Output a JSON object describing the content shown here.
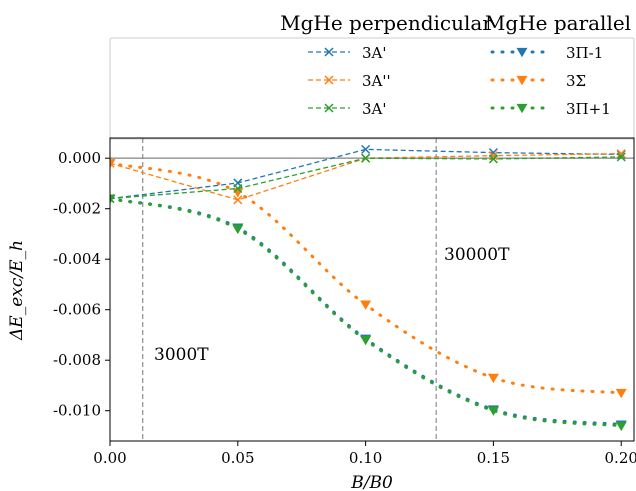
{
  "chart_data": {
    "type": "line",
    "xlabel": "B/B0",
    "ylabel": "ΔE_exc/E_h",
    "xlim": [
      0.0,
      0.205
    ],
    "ylim": [
      -0.0112,
      0.0008
    ],
    "x_ticks": [
      0.0,
      0.05,
      0.1,
      0.15,
      0.2
    ],
    "x_tick_labels": [
      "0.00",
      "0.05",
      "0.10",
      "0.15",
      "0.20"
    ],
    "y_ticks": [
      0.0,
      -0.002,
      -0.004,
      -0.006,
      -0.008,
      -0.01
    ],
    "y_tick_labels": [
      "0.000",
      "-0.002",
      "-0.004",
      "-0.006",
      "-0.008",
      "-0.010"
    ],
    "grid": false,
    "legend": {
      "placement": "top",
      "group_titles": [
        "MgHe perpendicular",
        "MgHe parallel"
      ],
      "perpendicular_labels": [
        "3A'",
        "3A''",
        "3A'"
      ],
      "parallel_labels": [
        "3Π-1",
        "3Σ",
        "3Π+1"
      ]
    },
    "annotations": [
      "3000T",
      "30000T"
    ],
    "vlines": [
      0.0128,
      0.1276
    ],
    "series": [
      {
        "group": "perpendicular",
        "name": "3A'",
        "style": "dashed",
        "marker": "x",
        "color": "#1f77b4",
        "x": [
          0.0,
          0.05,
          0.1,
          0.15,
          0.2
        ],
        "y": [
          -0.0016,
          -0.00098,
          0.00035,
          0.00022,
          0.00015
        ]
      },
      {
        "group": "perpendicular",
        "name": "3A''",
        "style": "dashed",
        "marker": "x",
        "color": "#ff7f0e",
        "x": [
          0.0,
          0.05,
          0.1,
          0.15,
          0.2
        ],
        "y": [
          -0.0002,
          -0.00165,
          0.0,
          0.0001,
          0.00018
        ]
      },
      {
        "group": "perpendicular",
        "name": "3A'",
        "style": "dashed",
        "marker": "x",
        "color": "#2ca02c",
        "x": [
          0.0,
          0.05,
          0.1,
          0.15,
          0.2
        ],
        "y": [
          -0.0016,
          -0.0012,
          0.0,
          -3e-05,
          5e-05
        ]
      },
      {
        "group": "parallel",
        "name": "3Π-1",
        "style": "dotted",
        "marker": "triangle-down",
        "color": "#1f77b4",
        "x": [
          0.0,
          0.05,
          0.1,
          0.15,
          0.2
        ],
        "y": [
          -0.0016,
          -0.00275,
          -0.00715,
          -0.00995,
          -0.01055
        ]
      },
      {
        "group": "parallel",
        "name": "3Σ",
        "style": "dotted",
        "marker": "triangle-down",
        "color": "#ff7f0e",
        "x": [
          0.0,
          0.05,
          0.1,
          0.15,
          0.2
        ],
        "y": [
          -0.0002,
          -0.00135,
          -0.0058,
          -0.0087,
          -0.0093
        ]
      },
      {
        "group": "parallel",
        "name": "3Π+1",
        "style": "dotted",
        "marker": "triangle-down",
        "color": "#2ca02c",
        "x": [
          0.0,
          0.05,
          0.1,
          0.15,
          0.2
        ],
        "y": [
          -0.0016,
          -0.0028,
          -0.0072,
          -0.01,
          -0.0106
        ]
      }
    ]
  }
}
